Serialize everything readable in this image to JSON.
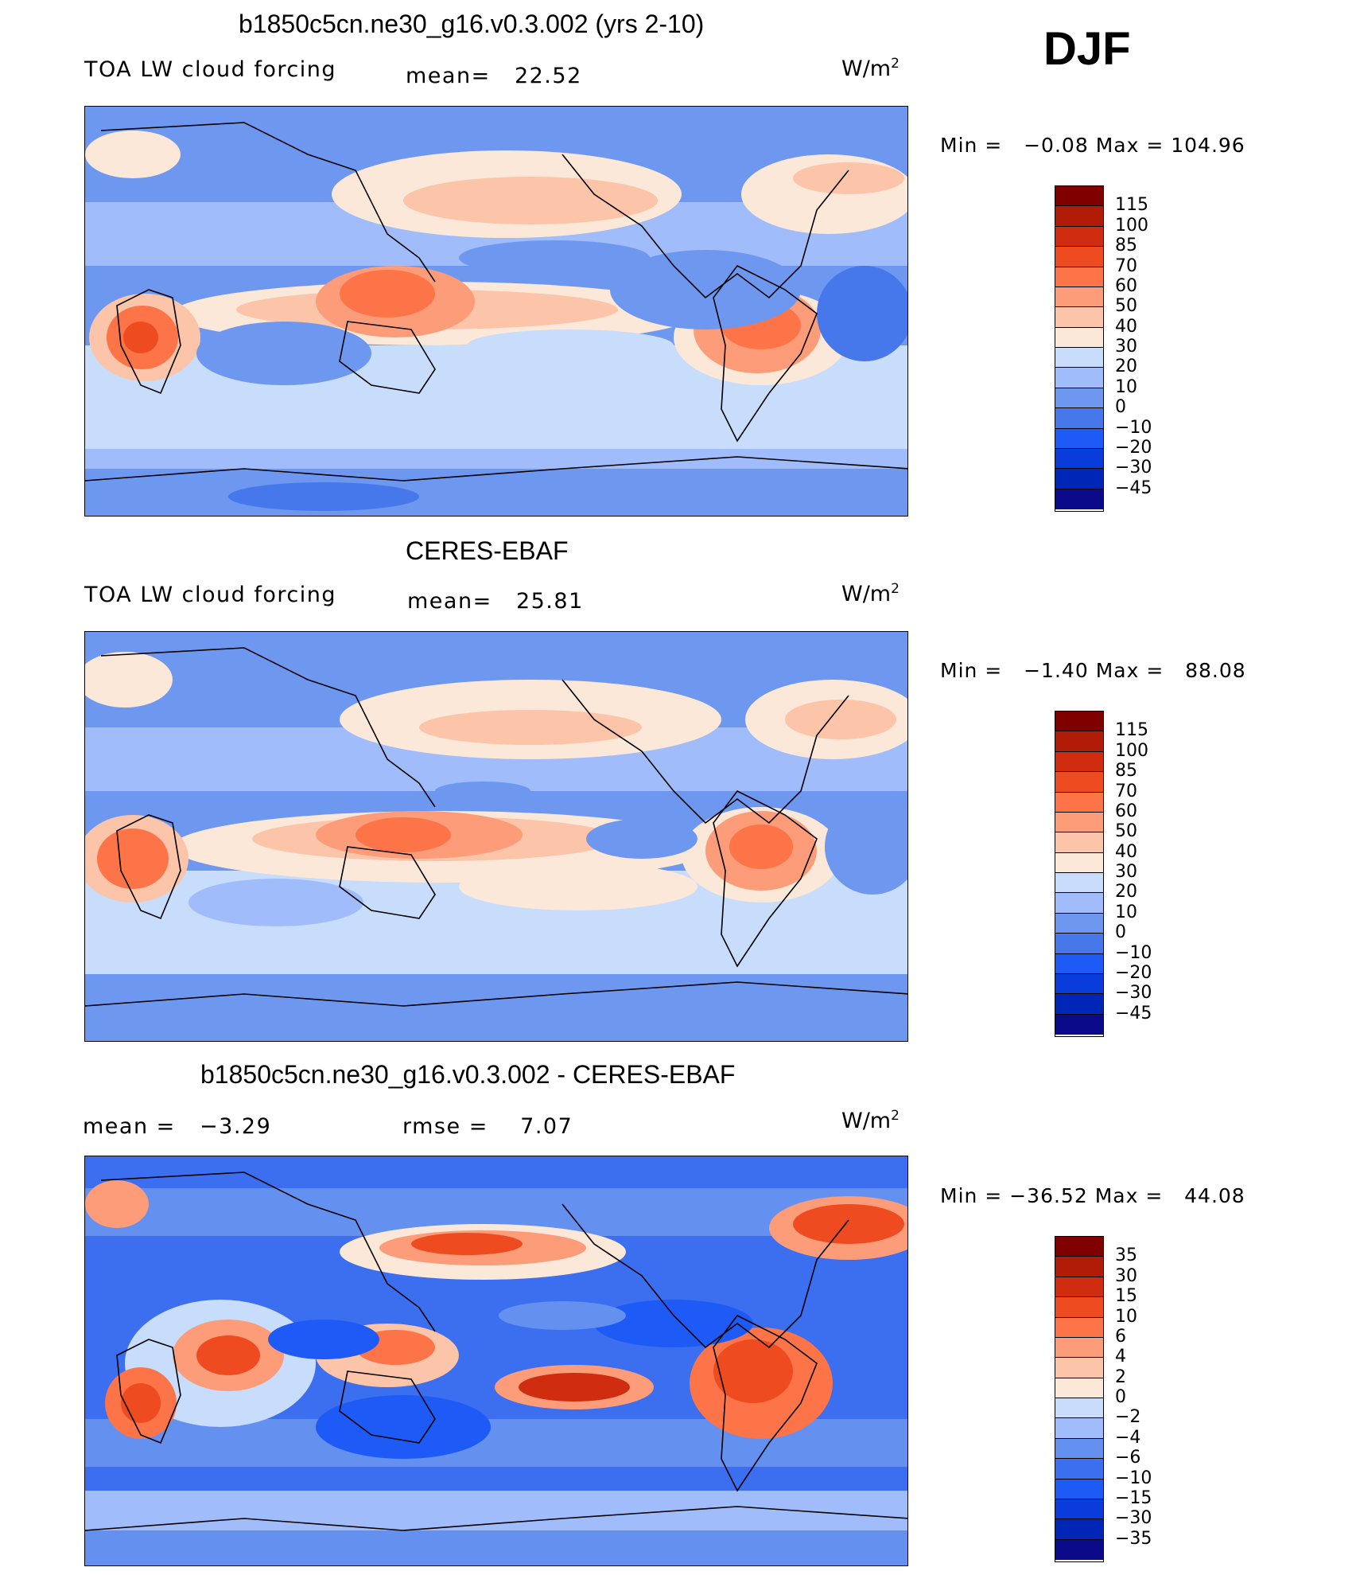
{
  "season": "DJF",
  "units_base": "W/m",
  "units_exp": "2",
  "colors": {
    "ramp13": [
      "#0a0a8a",
      "#0026b8",
      "#0a3cdc",
      "#1e5af5",
      "#4678ec",
      "#6e98f0",
      "#a0bcfa",
      "#c8dcfc",
      "#fce8d8",
      "#fcc4a8",
      "#fc9c78",
      "#fc7448",
      "#ee4c20",
      "#d02d10",
      "#b01c08",
      "#800000"
    ],
    "ramp_diff": [
      "#0a0a8a",
      "#0026b8",
      "#0a3cdc",
      "#1e5af5",
      "#3c6ef0",
      "#6490f0",
      "#a0bcfa",
      "#c8dcfc",
      "#fce8d8",
      "#fcc4a8",
      "#fc9c78",
      "#fc7448",
      "#ee4c20",
      "#d02d10",
      "#b01c08",
      "#800000"
    ]
  },
  "panels": [
    {
      "title": "b1850c5cn.ne30_g16.v0.3.002 (yrs 2-10)",
      "left_label": "TOA LW cloud forcing",
      "mean_label": "mean=",
      "mean_value": "22.52",
      "min_label": "Min =",
      "min_value": "−0.08",
      "max_label": "Max =",
      "max_value": "104.96",
      "ticks": [
        "115",
        "100",
        "85",
        "70",
        "60",
        "50",
        "40",
        "30",
        "20",
        "10",
        "0",
        "−10",
        "−20",
        "−30",
        "−45"
      ]
    },
    {
      "title": "CERES-EBAF",
      "left_label": "TOA LW cloud forcing",
      "mean_label": "mean=",
      "mean_value": "25.81",
      "min_label": "Min =",
      "min_value": "−1.40",
      "max_label": "Max =",
      "max_value": "88.08",
      "ticks": [
        "115",
        "100",
        "85",
        "70",
        "60",
        "50",
        "40",
        "30",
        "20",
        "10",
        "0",
        "−10",
        "−20",
        "−30",
        "−45"
      ]
    },
    {
      "title": "b1850c5cn.ne30_g16.v0.3.002 - CERES-EBAF",
      "left_label": "mean =",
      "mean_label": "−3.29",
      "rmse_label": "rmse =",
      "rmse_value": "7.07",
      "min_label": "Min =",
      "min_value": "−36.52",
      "max_label": "Max =",
      "max_value": "44.08",
      "ticks": [
        "35",
        "30",
        "15",
        "10",
        "6",
        "4",
        "2",
        "0",
        "−2",
        "−4",
        "−6",
        "−10",
        "−15",
        "−30",
        "−35"
      ]
    }
  ]
}
